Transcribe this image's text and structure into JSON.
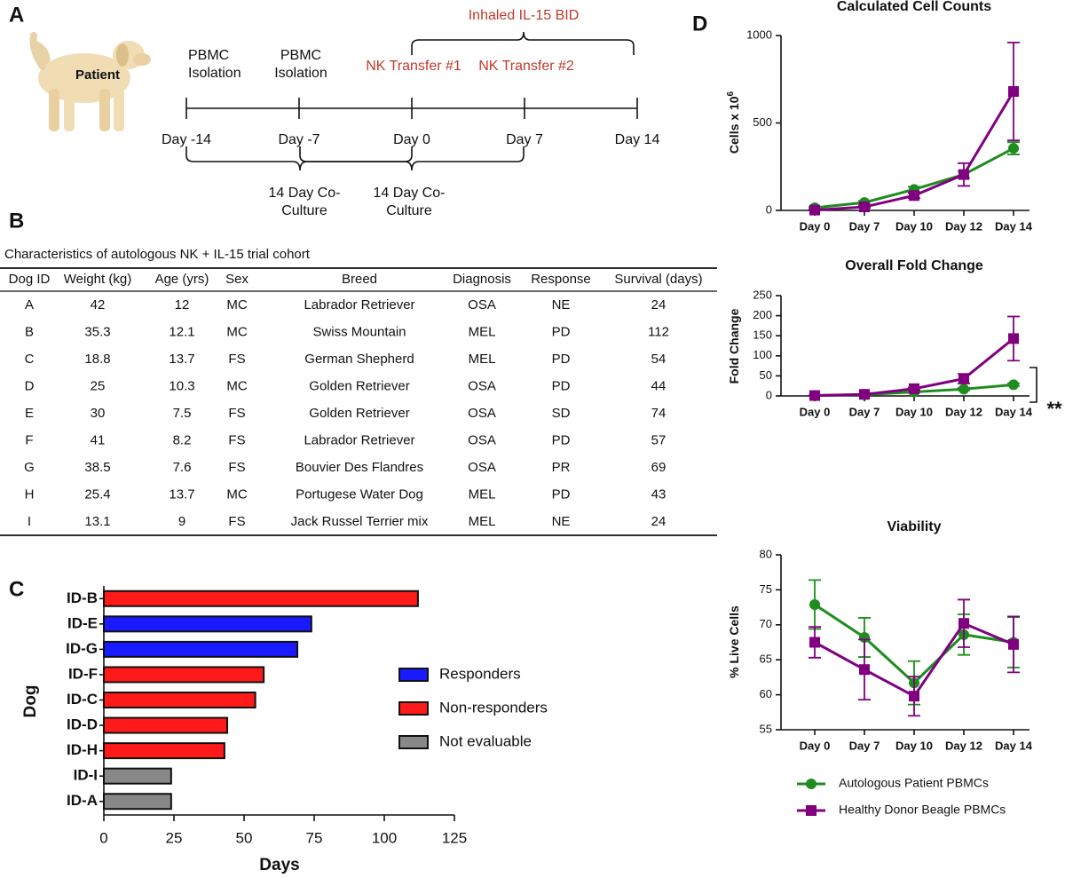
{
  "panel_labels": [
    "A",
    "B",
    "C",
    "D"
  ],
  "timeline": {
    "patient": "Patient",
    "days": [
      "Day -14",
      "Day -7",
      "Day 0",
      "Day 7",
      "Day 14"
    ],
    "isolations": [
      [
        "PBMC",
        "Isolation"
      ],
      [
        "PBMC",
        "Isolation"
      ]
    ],
    "transfers": [
      "NK Transfer #1",
      "NK Transfer #2"
    ],
    "treatment": "Inhaled IL-15 BID",
    "cocultures": [
      [
        "14 Day Co-",
        "Culture"
      ],
      [
        "14 Day Co-",
        "Culture"
      ]
    ]
  },
  "table": {
    "caption": "Characteristics of autologous NK + IL-15 trial cohort",
    "headers": [
      "Dog ID",
      "Weight (kg)",
      "Age (yrs)",
      "Sex",
      "Breed",
      "Diagnosis",
      "Response",
      "Survival (days)"
    ],
    "rows": [
      [
        "A",
        "42",
        "12",
        "MC",
        "Labrador Retriever",
        "OSA",
        "NE",
        "24"
      ],
      [
        "B",
        "35.3",
        "12.1",
        "MC",
        "Swiss Mountain",
        "MEL",
        "PD",
        "112"
      ],
      [
        "C",
        "18.8",
        "13.7",
        "FS",
        "German Shepherd",
        "MEL",
        "PD",
        "54"
      ],
      [
        "D",
        "25",
        "10.3",
        "MC",
        "Golden Retriever",
        "OSA",
        "PD",
        "44"
      ],
      [
        "E",
        "30",
        "7.5",
        "FS",
        "Golden Retriever",
        "OSA",
        "SD",
        "74"
      ],
      [
        "F",
        "41",
        "8.2",
        "FS",
        "Labrador Retriever",
        "OSA",
        "PD",
        "57"
      ],
      [
        "G",
        "38.5",
        "7.6",
        "FS",
        "Bouvier Des Flandres",
        "OSA",
        "PR",
        "69"
      ],
      [
        "H",
        "25.4",
        "13.7",
        "MC",
        "Portugese Water Dog",
        "MEL",
        "PD",
        "43"
      ],
      [
        "I",
        "13.1",
        "9",
        "FS",
        "Jack Russel Terrier mix",
        "MEL",
        "NE",
        "24"
      ]
    ]
  },
  "chart_data": [
    {
      "type": "hbar",
      "categories": [
        "ID-B",
        "ID-E",
        "ID-G",
        "ID-F",
        "ID-C",
        "ID-D",
        "ID-H",
        "ID-I",
        "ID-A"
      ],
      "values": [
        112,
        74,
        69,
        57,
        54,
        44,
        43,
        24,
        24
      ],
      "colors": [
        "#ff1a1a",
        "#1a1aff",
        "#1a1aff",
        "#ff1a1a",
        "#ff1a1a",
        "#ff1a1a",
        "#ff1a1a",
        "#888888",
        "#888888"
      ],
      "legend": [
        {
          "name": "Responders",
          "color": "#1a1aff"
        },
        {
          "name": "Non-responders",
          "color": "#ff1a1a"
        },
        {
          "name": "Not evaluable",
          "color": "#888888"
        }
      ],
      "xlabel": "Days",
      "ylabel": "Dog",
      "xlim": [
        0,
        125
      ],
      "xticks": [
        0,
        25,
        50,
        75,
        100,
        125
      ]
    },
    {
      "type": "line",
      "title": "Calculated Cell Counts",
      "ylabel": "Cells x 10",
      "ylabel_superscript": "6",
      "categories": [
        "Day 0",
        "Day 7",
        "Day 10",
        "Day 12",
        "Day 14"
      ],
      "series": [
        {
          "color": "#1e8c1e",
          "values": [
            15,
            45,
            120,
            205,
            355
          ],
          "errors": [
            5,
            10,
            15,
            20,
            35
          ]
        },
        {
          "color": "#800080",
          "values": [
            2,
            20,
            85,
            205,
            680
          ],
          "errors": [
            2,
            5,
            15,
            65,
            280
          ]
        }
      ],
      "ylim": [
        0,
        1000
      ],
      "yticks": [
        0,
        500,
        1000
      ]
    },
    {
      "type": "line",
      "title": "Overall Fold Change",
      "ylabel": "Fold Change",
      "annotation": "**",
      "categories": [
        "Day 0",
        "Day 7",
        "Day 10",
        "Day 12",
        "Day 14"
      ],
      "series": [
        {
          "color": "#1e8c1e",
          "values": [
            1,
            3,
            10,
            17,
            28
          ],
          "errors": [
            0.5,
            1,
            2,
            3,
            3
          ]
        },
        {
          "color": "#800080",
          "values": [
            1,
            4,
            18,
            43,
            143
          ],
          "errors": [
            0.5,
            1,
            3,
            12,
            55
          ]
        }
      ],
      "ylim": [
        0,
        250
      ],
      "yticks": [
        0,
        50,
        100,
        150,
        200,
        250
      ]
    },
    {
      "type": "line",
      "title": "Viability",
      "ylabel": "% Live Cells",
      "categories": [
        "Day 0",
        "Day 7",
        "Day 10",
        "Day 12",
        "Day 14"
      ],
      "series": [
        {
          "name": "Autologous Patient PBMCs",
          "color": "#1e8c1e",
          "values": [
            72.9,
            68.2,
            61.7,
            68.6,
            67.5
          ],
          "errors": [
            3.5,
            2.8,
            3.1,
            2.9,
            3.6
          ]
        },
        {
          "name": "Healthy Donor Beagle PBMCs",
          "color": "#800080",
          "values": [
            67.5,
            63.6,
            59.8,
            70.2,
            67.2
          ],
          "errors": [
            2.2,
            4.3,
            2.8,
            3.4,
            4
          ]
        }
      ],
      "ylim": [
        55,
        80
      ],
      "yticks": [
        55,
        60,
        65,
        70,
        75,
        80
      ]
    }
  ]
}
